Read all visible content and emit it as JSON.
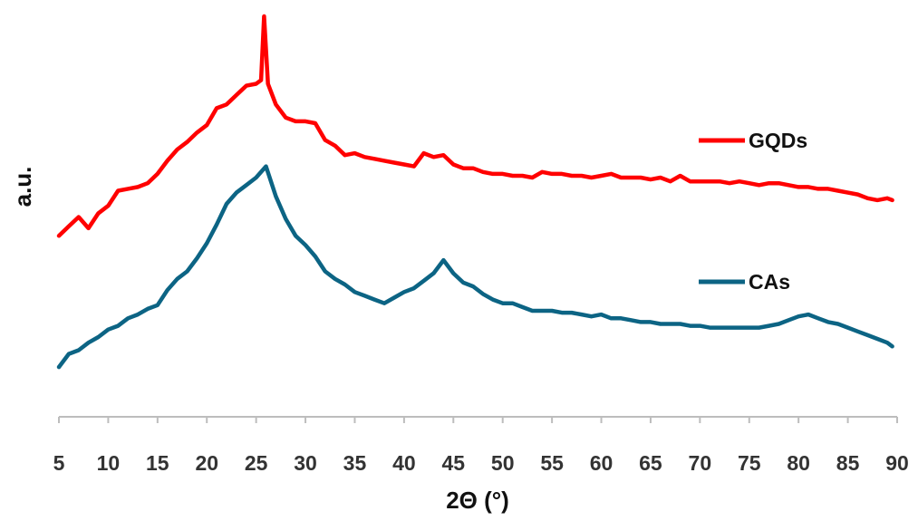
{
  "chart_data": {
    "type": "line",
    "title": "",
    "xlabel": "2Θ (°)",
    "ylabel": "a.u.",
    "xlim": [
      5,
      90
    ],
    "ylim": [
      0,
      100
    ],
    "x_ticks": [
      5,
      10,
      15,
      20,
      25,
      30,
      35,
      40,
      45,
      50,
      55,
      60,
      65,
      70,
      75,
      80,
      85,
      90
    ],
    "y_ticks_shown": false,
    "grid": false,
    "legend": "inline-right",
    "series": [
      {
        "name": "GQDs",
        "color": "#ff0000",
        "x": [
          5,
          6,
          7,
          8,
          9,
          10,
          11,
          12,
          13,
          14,
          15,
          16,
          17,
          18,
          19,
          20,
          21,
          22,
          23,
          24,
          25,
          25.5,
          25.8,
          26.2,
          27,
          28,
          29,
          30,
          31,
          32,
          33,
          34,
          35,
          36,
          37,
          38,
          39,
          40,
          41,
          42,
          43,
          44,
          45,
          46,
          47,
          48,
          49,
          50,
          51,
          52,
          53,
          54,
          55,
          56,
          57,
          58,
          59,
          60,
          61,
          62,
          63,
          64,
          65,
          66,
          67,
          68,
          69,
          70,
          71,
          72,
          73,
          74,
          75,
          76,
          77,
          78,
          79,
          80,
          81,
          82,
          83,
          84,
          85,
          86,
          87,
          88,
          89,
          89.5
        ],
        "y": [
          41.5,
          44,
          46.5,
          43.5,
          47.5,
          49.5,
          53.5,
          54,
          54.5,
          55.5,
          58,
          61.5,
          64.5,
          66.5,
          69,
          71,
          75.5,
          76.5,
          79,
          81.5,
          82,
          83,
          100,
          82,
          76.5,
          73,
          72,
          72,
          71.5,
          67,
          65.5,
          63,
          63.5,
          62.5,
          62,
          61.5,
          61,
          60.5,
          60,
          63.5,
          62.5,
          63,
          60.5,
          59.5,
          59.5,
          58.5,
          58,
          58,
          57.5,
          57.5,
          57,
          58.5,
          58,
          58,
          57.5,
          57.5,
          57,
          57.5,
          58,
          57,
          57,
          57,
          56.5,
          57,
          56,
          57.5,
          56,
          56,
          56,
          56,
          55.5,
          56,
          55.5,
          55,
          55.5,
          55.5,
          55,
          54.5,
          54.5,
          54,
          54,
          53.5,
          53,
          52.5,
          51.5,
          51,
          51.5,
          51
        ]
      },
      {
        "name": "CAs",
        "color": "#0c6484",
        "x": [
          5,
          6,
          7,
          8,
          9,
          10,
          11,
          12,
          13,
          14,
          15,
          16,
          17,
          18,
          19,
          20,
          21,
          22,
          23,
          24,
          25,
          26,
          27,
          28,
          29,
          30,
          31,
          32,
          33,
          34,
          35,
          36,
          37,
          38,
          39,
          40,
          41,
          42,
          43,
          44,
          45,
          46,
          47,
          48,
          49,
          50,
          51,
          52,
          53,
          54,
          55,
          56,
          57,
          58,
          59,
          60,
          61,
          62,
          63,
          64,
          65,
          66,
          67,
          68,
          69,
          70,
          71,
          72,
          73,
          74,
          75,
          76,
          77,
          78,
          79,
          80,
          81,
          82,
          83,
          84,
          85,
          86,
          87,
          88,
          89,
          89.5
        ],
        "y": [
          6.5,
          10,
          11,
          13,
          14.5,
          16.5,
          17.5,
          19.5,
          20.5,
          22,
          23,
          27,
          30,
          32,
          35.5,
          39.5,
          44.5,
          50,
          53,
          55,
          57,
          60,
          52,
          46,
          41.5,
          39,
          36,
          32,
          30,
          28.5,
          26.5,
          25.5,
          24.5,
          23.5,
          25,
          26.5,
          27.5,
          29.5,
          31.5,
          35,
          31.5,
          29,
          28,
          26,
          24.5,
          23.5,
          23.5,
          22.5,
          21.5,
          21.5,
          21.5,
          21,
          21,
          20.5,
          20,
          20.5,
          19.5,
          19.5,
          19,
          18.5,
          18.5,
          18,
          18,
          18,
          17.5,
          17.5,
          17,
          17,
          17,
          17,
          17,
          17,
          17.5,
          18,
          19,
          20,
          20.5,
          19.5,
          18.5,
          18,
          17,
          16,
          15,
          14,
          13,
          12
        ]
      }
    ]
  }
}
